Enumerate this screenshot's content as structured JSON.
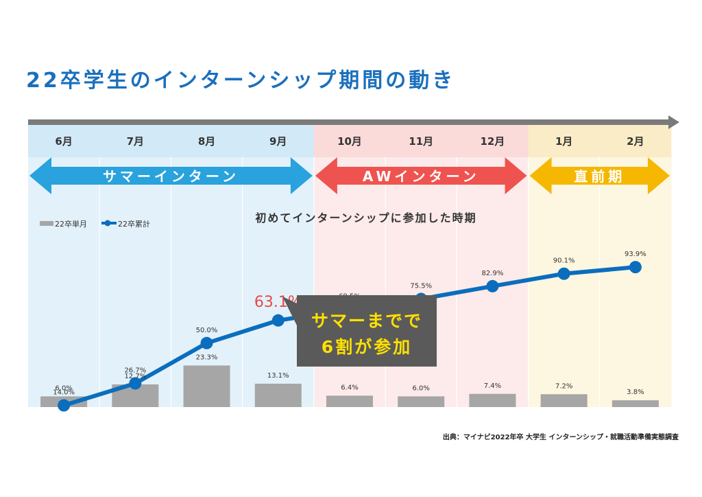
{
  "title": "22卒学生のインターンシップ期間の動き",
  "source": "出典：マイナビ2022年卒 大学生 インターンシップ・就職活動準備実態調査",
  "colors": {
    "title": "#1a6fbd",
    "summer_bg": "#e3f1fa",
    "aw_bg": "#fdeaea",
    "pre_bg": "#fdf6e0",
    "month_summer_bg": "#d2e9f7",
    "month_aw_bg": "#fbdada",
    "month_pre_bg": "#f9ecc6",
    "summer_arrow": "#29a2dd",
    "aw_arrow": "#ef5350",
    "pre_arrow": "#f5b700",
    "line": "#0a6ebd",
    "bar": "#a6a6a6",
    "highlight": "#e84a4a",
    "callout_bg": "#5a5a5a",
    "callout_text": "#ffe000"
  },
  "phases": [
    {
      "label": "サマーインターン",
      "start": 0,
      "end": 3,
      "kind": "summer"
    },
    {
      "label": "AWインターン",
      "start": 4,
      "end": 6,
      "kind": "aw"
    },
    {
      "label": "直前期",
      "start": 7,
      "end": 8,
      "kind": "pre"
    }
  ],
  "callout": {
    "line1": "サマーまでで",
    "line2": "6割が参加"
  },
  "chart_data": {
    "type": "bar",
    "title": "初めてインターンシップに参加した時期",
    "categories": [
      "6月",
      "7月",
      "8月",
      "9月",
      "10月",
      "11月",
      "12月",
      "1月",
      "2月"
    ],
    "series": [
      {
        "name": "22卒単月",
        "type": "bar",
        "values": [
          6.0,
          12.7,
          23.3,
          13.1,
          6.4,
          6.0,
          7.4,
          7.2,
          3.8
        ],
        "labels": [
          "6.0%",
          "12.7%",
          "23.3%",
          "13.1%",
          "6.4%",
          "6.0%",
          "7.4%",
          "7.2%",
          "3.8%"
        ]
      },
      {
        "name": "22卒累計",
        "type": "line",
        "values": [
          14.0,
          26.7,
          50.0,
          63.1,
          69.5,
          75.5,
          82.9,
          90.1,
          93.9
        ],
        "labels": [
          "14.0%",
          "26.7%",
          "50.0%",
          "63.1%",
          "69.5%",
          "75.5%",
          "82.9%",
          "90.1%",
          "93.9%"
        ]
      }
    ],
    "highlight_index": 3,
    "legend": "top-left",
    "grid": false
  }
}
